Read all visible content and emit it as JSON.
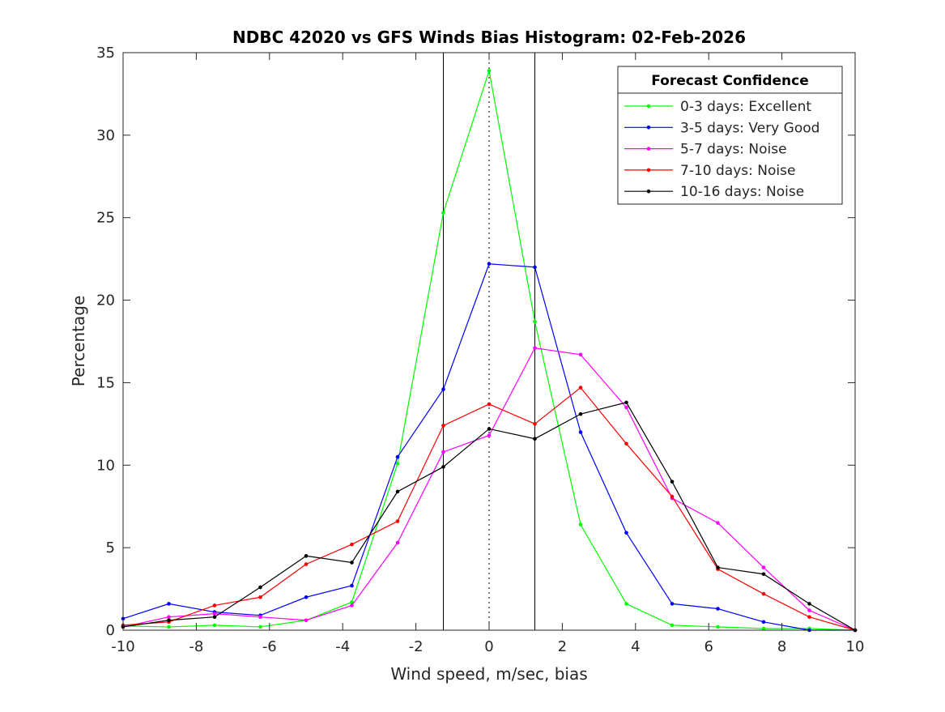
{
  "chart_data": {
    "type": "line",
    "title": "NDBC 42020 vs GFS Winds Bias Histogram: 02-Feb-2026",
    "xlabel": "Wind speed, m/sec, bias",
    "ylabel": "Percentage",
    "xlim": [
      -10,
      10
    ],
    "ylim": [
      0,
      35
    ],
    "xticks": [
      -10,
      -8,
      -6,
      -4,
      -2,
      0,
      2,
      4,
      6,
      8,
      10
    ],
    "yticks": [
      0,
      5,
      10,
      15,
      20,
      25,
      30,
      35
    ],
    "grid": false,
    "reference_lines": {
      "solid": [
        -1.25,
        1.25
      ],
      "dotted": [
        0
      ]
    },
    "legend": {
      "title": "Forecast Confidence",
      "placement": "top-right"
    },
    "x": [
      -10,
      -8.75,
      -7.5,
      -6.25,
      -5,
      -3.75,
      -2.5,
      -1.25,
      0,
      1.25,
      2.5,
      3.75,
      5,
      6.25,
      7.5,
      8.75,
      10
    ],
    "series": [
      {
        "name": "0-3 days: Excellent",
        "color": "#00ff00",
        "values": [
          0.25,
          0.2,
          0.3,
          0.2,
          0.6,
          1.7,
          10.1,
          25.3,
          33.9,
          18.7,
          6.4,
          1.6,
          0.3,
          0.2,
          0.1,
          0.1,
          0
        ]
      },
      {
        "name": "3-5 days: Very Good",
        "color": "#0000ff",
        "values": [
          0.7,
          1.6,
          1.1,
          0.9,
          2.0,
          2.7,
          10.5,
          14.6,
          22.2,
          22.0,
          12.0,
          5.9,
          1.6,
          1.3,
          0.5,
          0.0,
          0
        ]
      },
      {
        "name": "5-7 days: Noise",
        "color": "#ff00ff",
        "values": [
          0.2,
          0.8,
          1.0,
          0.8,
          0.6,
          1.5,
          5.3,
          10.8,
          11.8,
          17.1,
          16.7,
          13.5,
          8.0,
          6.5,
          3.8,
          1.2,
          0
        ]
      },
      {
        "name": "7-10 days: Noise",
        "color": "#ff0000",
        "values": [
          0.3,
          0.5,
          1.5,
          2.0,
          4.0,
          5.2,
          6.6,
          12.4,
          13.7,
          12.5,
          14.7,
          11.3,
          8.1,
          3.7,
          2.2,
          0.8,
          0
        ]
      },
      {
        "name": "10-16 days: Noise",
        "color": "#000000",
        "values": [
          0.2,
          0.6,
          0.8,
          2.6,
          4.5,
          4.1,
          8.4,
          9.9,
          12.2,
          11.6,
          13.1,
          13.8,
          9.0,
          3.8,
          3.4,
          1.6,
          0
        ]
      }
    ]
  }
}
